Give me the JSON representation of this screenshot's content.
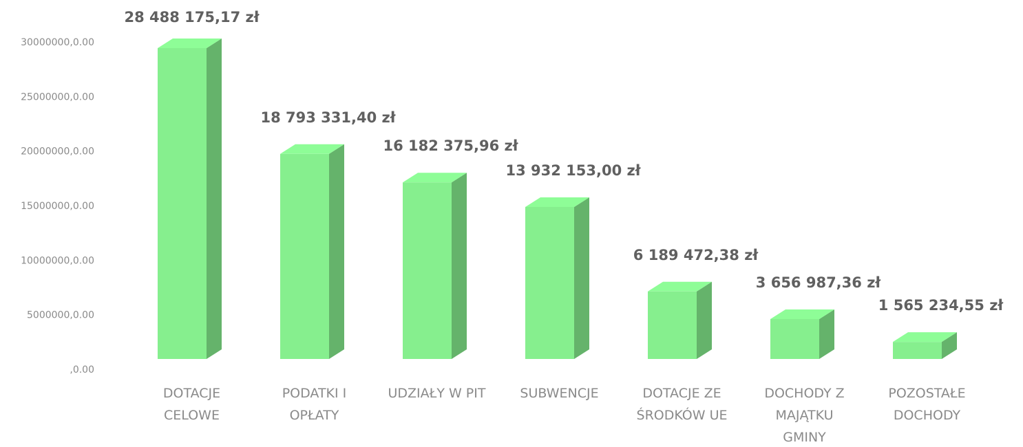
{
  "chart_data": {
    "type": "bar3d",
    "categories": [
      "DOTACJE CELOWE",
      "PODATKI I OPŁATY",
      "UDZIAŁY W PIT",
      "SUBWENCJE",
      "DOTACJE ZE ŚRODKÓW UE",
      "DOCHODY Z MAJĄTKU GMINY",
      "POZOSTAŁE DOCHODY"
    ],
    "values": [
      28488175.17,
      18793331.4,
      16182375.96,
      13932153.0,
      6189472.38,
      3656987.36,
      1565234.55
    ],
    "value_labels": [
      "28 488 175,17 zł",
      "18 793 331,40 zł",
      "16 182 375,96 zł",
      "13 932 153,00 zł",
      "6 189 472,38 zł",
      "3 656 987,36 zł",
      "1 565 234,55 zł"
    ],
    "color": "#86ef8e",
    "ylim": [
      0,
      30000000
    ],
    "yticks": [
      {
        "value": 0,
        "label": ",0.00"
      },
      {
        "value": 5000000,
        "label": "5000000,0.00"
      },
      {
        "value": 10000000,
        "label": "10000000,0.00"
      },
      {
        "value": 15000000,
        "label": "15000000,0.00"
      },
      {
        "value": 20000000,
        "label": "20000000,0.00"
      },
      {
        "value": 25000000,
        "label": "25000000,0.00"
      },
      {
        "value": 30000000,
        "label": "30000000,0.00"
      }
    ],
    "grid": false
  }
}
